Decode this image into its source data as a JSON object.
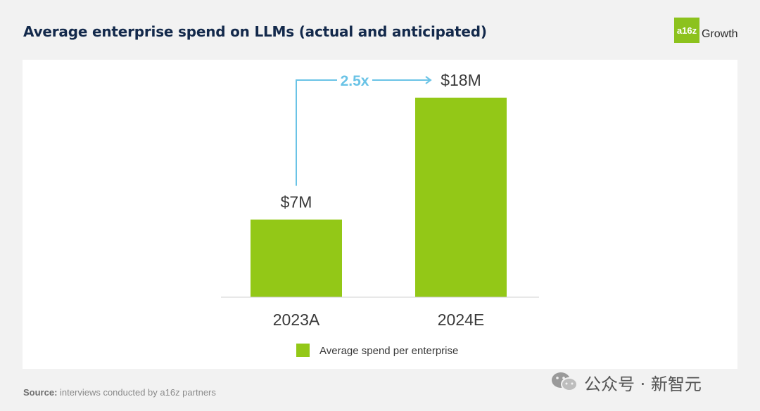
{
  "header": {
    "title": "Average enterprise spend on LLMs (actual and anticipated)",
    "brand_badge": "a16z",
    "brand_name": "Growth"
  },
  "chart_data": {
    "type": "bar",
    "categories": [
      "2023A",
      "2024E"
    ],
    "series": [
      {
        "name": "Average spend per enterprise",
        "values": [
          7,
          18
        ]
      }
    ],
    "value_labels": [
      "$7M",
      "$18M"
    ],
    "annotation": "2.5x",
    "ylabel": "",
    "xlabel": "",
    "legend_position": "bottom",
    "grid": false,
    "ylim": [
      0,
      18
    ]
  },
  "colors": {
    "bar": "#93c817",
    "annotation": "#6ac3e6",
    "title": "#13294b",
    "brand": "#8cc21d"
  },
  "footer": {
    "source_label": "Source:",
    "source_text": "interviews conducted by a16z partners"
  },
  "watermark": {
    "text": "公众号 · 新智元",
    "icon": "wechat-icon"
  }
}
